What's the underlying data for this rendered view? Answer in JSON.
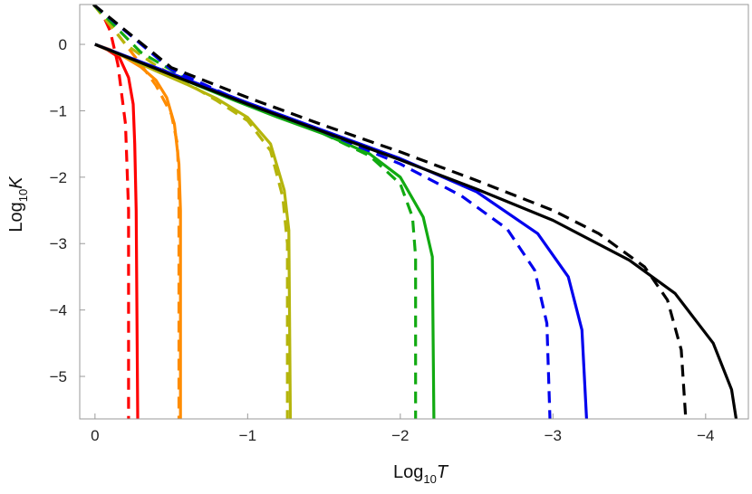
{
  "chart_data": {
    "type": "line",
    "x_axis": {
      "label_main": "Log",
      "label_sub": "10",
      "label_var": "T",
      "range": [
        0.1,
        -4.28
      ],
      "ticks": [
        0,
        -1,
        -2,
        -3,
        -4
      ],
      "tick_labels": [
        "0",
        "−1",
        "−2",
        "−3",
        "−4"
      ]
    },
    "y_axis": {
      "label_main": "Log",
      "label_sub": "10",
      "label_var": "K",
      "range": [
        -5.64,
        0.6
      ],
      "ticks": [
        0,
        -1,
        -2,
        -3,
        -4,
        -5
      ],
      "tick_labels": [
        "0",
        "−1",
        "−2",
        "−3",
        "−4",
        "−5"
      ]
    },
    "grid": false,
    "legend": "none",
    "series": [
      {
        "color": "#ff0000",
        "style": "dashed",
        "points": [
          [
            0.01,
            0.6
          ],
          [
            -0.05,
            0.45
          ],
          [
            -0.1,
            0.2
          ],
          [
            -0.15,
            -0.3
          ],
          [
            -0.2,
            -1.2
          ],
          [
            -0.22,
            -2.5
          ],
          [
            -0.22,
            -5.64
          ]
        ]
      },
      {
        "color": "#ff0000",
        "style": "solid",
        "points": [
          [
            0,
            0.0
          ],
          [
            -0.08,
            -0.08
          ],
          [
            -0.16,
            -0.2
          ],
          [
            -0.22,
            -0.5
          ],
          [
            -0.25,
            -0.9
          ],
          [
            -0.26,
            -1.5
          ],
          [
            -0.27,
            -2.5
          ],
          [
            -0.28,
            -5.64
          ]
        ]
      },
      {
        "color": "#ff8c00",
        "style": "dashed",
        "points": [
          [
            0.01,
            0.6
          ],
          [
            -0.1,
            0.3
          ],
          [
            -0.2,
            0.0
          ],
          [
            -0.3,
            -0.3
          ],
          [
            -0.4,
            -0.62
          ],
          [
            -0.5,
            -1.05
          ],
          [
            -0.54,
            -1.5
          ],
          [
            -0.55,
            -2.2
          ],
          [
            -0.55,
            -5.64
          ]
        ]
      },
      {
        "color": "#ff8c00",
        "style": "solid",
        "points": [
          [
            0,
            0.0
          ],
          [
            -0.1,
            -0.08
          ],
          [
            -0.2,
            -0.2
          ],
          [
            -0.3,
            -0.34
          ],
          [
            -0.4,
            -0.54
          ],
          [
            -0.47,
            -0.8
          ],
          [
            -0.52,
            -1.2
          ],
          [
            -0.55,
            -1.8
          ],
          [
            -0.56,
            -2.5
          ],
          [
            -0.56,
            -5.64
          ]
        ]
      },
      {
        "color": "#b5b50c",
        "style": "dashed",
        "points": [
          [
            0.01,
            0.6
          ],
          [
            -0.2,
            0.0
          ],
          [
            -0.4,
            -0.32
          ],
          [
            -0.6,
            -0.58
          ],
          [
            -0.8,
            -0.85
          ],
          [
            -1.0,
            -1.15
          ],
          [
            -1.15,
            -1.6
          ],
          [
            -1.23,
            -2.3
          ],
          [
            -1.26,
            -3.0
          ],
          [
            -1.26,
            -5.64
          ]
        ]
      },
      {
        "color": "#b5b50c",
        "style": "solid",
        "points": [
          [
            0,
            0.0
          ],
          [
            -0.2,
            -0.19
          ],
          [
            -0.4,
            -0.4
          ],
          [
            -0.6,
            -0.6
          ],
          [
            -0.8,
            -0.82
          ],
          [
            -1.0,
            -1.1
          ],
          [
            -1.15,
            -1.5
          ],
          [
            -1.24,
            -2.2
          ],
          [
            -1.27,
            -2.8
          ],
          [
            -1.28,
            -5.64
          ]
        ]
      },
      {
        "color": "#11aa11",
        "style": "dashed",
        "points": [
          [
            0.01,
            0.6
          ],
          [
            -0.3,
            -0.12
          ],
          [
            -0.6,
            -0.52
          ],
          [
            -0.9,
            -0.82
          ],
          [
            -1.2,
            -1.08
          ],
          [
            -1.5,
            -1.35
          ],
          [
            -1.8,
            -1.68
          ],
          [
            -2.0,
            -2.1
          ],
          [
            -2.08,
            -2.6
          ],
          [
            -2.1,
            -3.2
          ],
          [
            -2.1,
            -5.64
          ]
        ]
      },
      {
        "color": "#11aa11",
        "style": "solid",
        "points": [
          [
            0,
            0.0
          ],
          [
            -0.3,
            -0.27
          ],
          [
            -0.6,
            -0.55
          ],
          [
            -0.9,
            -0.83
          ],
          [
            -1.2,
            -1.1
          ],
          [
            -1.5,
            -1.35
          ],
          [
            -1.8,
            -1.65
          ],
          [
            -2.0,
            -2.0
          ],
          [
            -2.15,
            -2.6
          ],
          [
            -2.21,
            -3.2
          ],
          [
            -2.22,
            -5.64
          ]
        ]
      },
      {
        "color": "#0000ee",
        "style": "dashed",
        "points": [
          [
            0.01,
            0.6
          ],
          [
            -0.5,
            -0.38
          ],
          [
            -1.0,
            -0.9
          ],
          [
            -1.5,
            -1.32
          ],
          [
            -2.0,
            -1.8
          ],
          [
            -2.4,
            -2.28
          ],
          [
            -2.7,
            -2.78
          ],
          [
            -2.88,
            -3.4
          ],
          [
            -2.96,
            -4.2
          ],
          [
            -2.98,
            -5.64
          ]
        ]
      },
      {
        "color": "#0000ee",
        "style": "solid",
        "points": [
          [
            0,
            0.0
          ],
          [
            -0.5,
            -0.44
          ],
          [
            -1.0,
            -0.88
          ],
          [
            -1.5,
            -1.3
          ],
          [
            -2.0,
            -1.72
          ],
          [
            -2.5,
            -2.22
          ],
          [
            -2.9,
            -2.85
          ],
          [
            -3.1,
            -3.5
          ],
          [
            -3.19,
            -4.3
          ],
          [
            -3.22,
            -5.64
          ]
        ]
      },
      {
        "color": "#000000",
        "style": "dashed",
        "points": [
          [
            0.01,
            0.6
          ],
          [
            -0.5,
            -0.35
          ],
          [
            -1.0,
            -0.8
          ],
          [
            -1.5,
            -1.22
          ],
          [
            -2.0,
            -1.62
          ],
          [
            -2.5,
            -2.05
          ],
          [
            -3.0,
            -2.5
          ],
          [
            -3.3,
            -2.85
          ],
          [
            -3.6,
            -3.35
          ],
          [
            -3.75,
            -3.85
          ],
          [
            -3.84,
            -4.6
          ],
          [
            -3.87,
            -5.64
          ]
        ]
      },
      {
        "color": "#000000",
        "style": "solid",
        "points": [
          [
            0,
            0.0
          ],
          [
            -0.5,
            -0.46
          ],
          [
            -1.0,
            -0.9
          ],
          [
            -1.5,
            -1.32
          ],
          [
            -2.0,
            -1.74
          ],
          [
            -2.5,
            -2.18
          ],
          [
            -3.0,
            -2.65
          ],
          [
            -3.5,
            -3.25
          ],
          [
            -3.8,
            -3.75
          ],
          [
            -4.05,
            -4.5
          ],
          [
            -4.17,
            -5.2
          ],
          [
            -4.2,
            -5.64
          ]
        ]
      }
    ]
  }
}
